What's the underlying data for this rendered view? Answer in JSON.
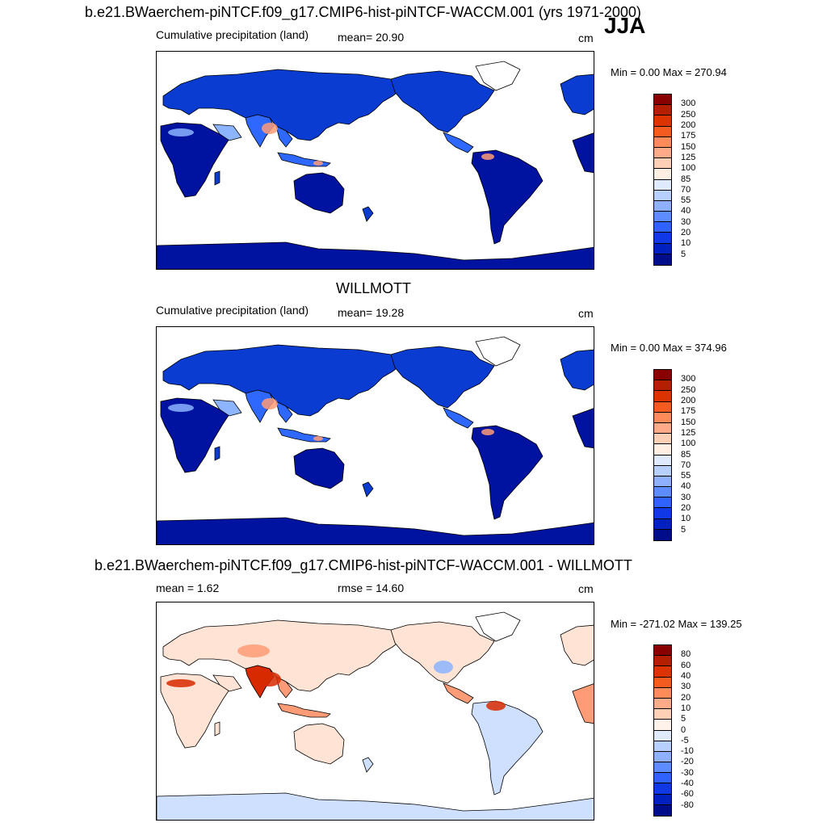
{
  "main_title": "b.e21.BWaerchem-piNTCF.f09_g17.CMIP6-hist-piNTCF-WACCM.001 (yrs 1971-2000)",
  "season": "JJA",
  "panels": [
    {
      "title": "",
      "left_label": "Cumulative precipitation (land)",
      "center_label": "mean=  20.90",
      "units": "cm",
      "minmax": "Min =   0.00 Max = 270.94",
      "colorbar": {
        "labels": [
          "300",
          "250",
          "200",
          "175",
          "150",
          "125",
          "100",
          "85",
          "70",
          "55",
          "40",
          "30",
          "20",
          "10",
          "5"
        ],
        "colors": [
          "#8a0000",
          "#b51e00",
          "#dc3300",
          "#f55a1e",
          "#ff8a5a",
          "#ffaa88",
          "#ffd0b6",
          "#fff0e3",
          "#dfeaff",
          "#b8d0ff",
          "#8fb0ff",
          "#5c8cff",
          "#2f62ff",
          "#1038e6",
          "#0020c2",
          "#000d8a"
        ]
      },
      "colors": {
        "ocean": "#ffffff",
        "base": "#0a3cd2",
        "low": "#0012a0",
        "mid": "#2f68ff",
        "light": "#8cb4ff",
        "warm": "#ff9b76"
      }
    },
    {
      "title": "WILLMOTT",
      "left_label": "Cumulative precipitation (land)",
      "center_label": "mean=  19.28",
      "units": "cm",
      "minmax": "Min =   0.00 Max = 374.96",
      "colorbar": {
        "labels": [
          "300",
          "250",
          "200",
          "175",
          "150",
          "125",
          "100",
          "85",
          "70",
          "55",
          "40",
          "30",
          "20",
          "10",
          "5"
        ],
        "colors": [
          "#8a0000",
          "#b51e00",
          "#dc3300",
          "#f55a1e",
          "#ff8a5a",
          "#ffaa88",
          "#ffd0b6",
          "#fff0e3",
          "#dfeaff",
          "#b8d0ff",
          "#8fb0ff",
          "#5c8cff",
          "#2f62ff",
          "#1038e6",
          "#0020c2",
          "#000d8a"
        ]
      },
      "colors": {
        "ocean": "#ffffff",
        "base": "#0a3cd2",
        "low": "#0012a0",
        "mid": "#2f68ff",
        "light": "#8cb4ff",
        "warm": "#ff9b76"
      }
    },
    {
      "title": "b.e21.BWaerchem-piNTCF.f09_g17.CMIP6-hist-piNTCF-WACCM.001 - WILLMOTT",
      "left_label": "mean =   1.62",
      "center_label": "rmse =  14.60",
      "units": "cm",
      "minmax": "Min = -271.02 Max = 139.25",
      "colorbar": {
        "labels": [
          "80",
          "60",
          "40",
          "30",
          "20",
          "10",
          "5",
          "0",
          "-5",
          "-10",
          "-20",
          "-30",
          "-40",
          "-60",
          "-80"
        ],
        "colors": [
          "#8a0000",
          "#b51e00",
          "#dc3300",
          "#f55a1e",
          "#ff8a5a",
          "#ffaa88",
          "#ffd0b6",
          "#fff2ea",
          "#dfeaff",
          "#b8d0ff",
          "#8fb0ff",
          "#5c8cff",
          "#2f62ff",
          "#1038e6",
          "#0020c2",
          "#000d8a"
        ]
      },
      "colors": {
        "ocean": "#ffffff",
        "base": "#ffe3d4",
        "low": "#cfe0ff",
        "mid": "#ff9b76",
        "light": "#8cb4ff",
        "warm": "#d82a00"
      }
    }
  ]
}
